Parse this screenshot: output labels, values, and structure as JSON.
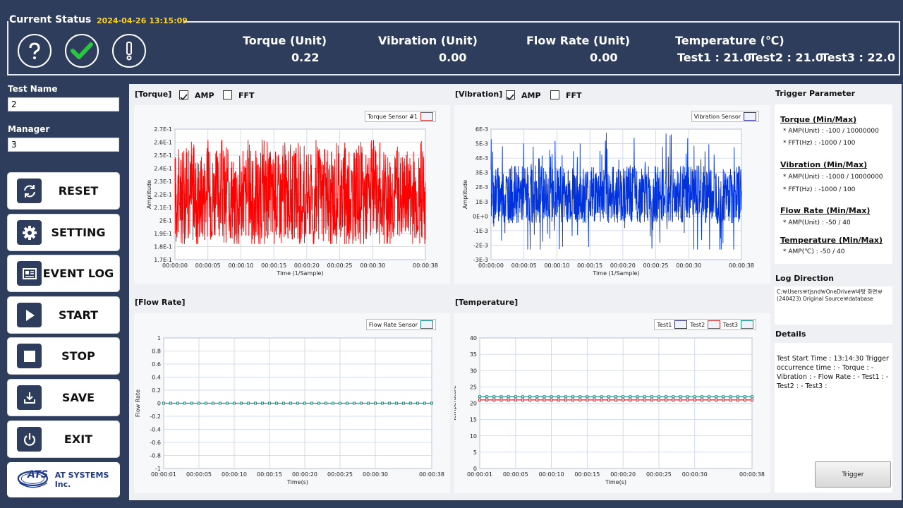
{
  "status": {
    "title": "Current Status",
    "datetime": "2024-04-26 13:15:09",
    "icons": [
      "help-icon",
      "check-icon",
      "alert-icon"
    ],
    "torque": {
      "label": "Torque (Unit)",
      "value": "0.22"
    },
    "vibration": {
      "label": "Vibration (Unit)",
      "value": "0.00"
    },
    "flow": {
      "label": "Flow Rate (Unit)",
      "value": "0.00"
    },
    "temperature": {
      "label": "Temperature (℃)",
      "test1": "Test1 : 21.0",
      "test2": "Test2 : 21.0",
      "test3": "Test3 : 22.0"
    }
  },
  "sidebar": {
    "test_name_label": "Test Name",
    "test_name_value": "2",
    "manager_label": "Manager",
    "manager_value": "3",
    "buttons": [
      {
        "label": "RESET",
        "icon": "refresh-icon"
      },
      {
        "label": "SETTING",
        "icon": "gear-icon"
      },
      {
        "label": "EVENT LOG",
        "icon": "log-icon"
      },
      {
        "label": "START",
        "icon": "play-icon"
      },
      {
        "label": "STOP",
        "icon": "stop-icon"
      },
      {
        "label": "SAVE",
        "icon": "download-icon"
      },
      {
        "label": "EXIT",
        "icon": "power-icon"
      }
    ],
    "logo_mark": "ATS",
    "logo_text": "AT SYSTEMS Inc."
  },
  "panels": {
    "torque": {
      "title": "[Torque]",
      "amp": "AMP",
      "fft": "FFT",
      "amp_checked": true,
      "fft_checked": false
    },
    "vibration": {
      "title": "[Vibration]",
      "amp": "AMP",
      "fft": "FFT",
      "amp_checked": true,
      "fft_checked": false
    },
    "flow": {
      "title": "[Flow Rate]"
    },
    "temperature": {
      "title": "[Temperature]"
    }
  },
  "colors": {
    "torque": "#ff0000",
    "vibration": "#0033dd",
    "flow": "#1f8f86",
    "bg_dark": "#2e3d5c"
  },
  "chart_data": [
    {
      "id": "torque",
      "type": "line",
      "legend": [
        "Torque Sensor #1"
      ],
      "ylabel": "Amplitude",
      "xlabel": "Time (1/Sample)",
      "yticks": [
        "2.7E-1",
        "2.6E-1",
        "2.5E-1",
        "2.4E-1",
        "2.3E-1",
        "2.2E-1",
        "2.1E-1",
        "2E-1",
        "1.9E-1",
        "1.8E-1",
        "1.7E-1"
      ],
      "xticks": [
        "00:00:00",
        "00:00:05",
        "00:00:10",
        "00:00:15",
        "00:00:20",
        "00:00:25",
        "00:00:30",
        "00:00:38"
      ],
      "ylim": [
        0.17,
        0.27
      ],
      "band": {
        "center": 0.22,
        "spread": 0.035,
        "max_spike": 0.262,
        "min_spike": 0.182
      }
    },
    {
      "id": "vibration",
      "type": "line",
      "legend": [
        "Vibration Sensor"
      ],
      "ylabel": "Amplitude",
      "xlabel": "Time (1/Sample)",
      "yticks": [
        "6E-3",
        "5E-3",
        "4E-3",
        "3E-3",
        "2E-3",
        "1E-3",
        "0E+0",
        "-1E-3",
        "-2E-3",
        "-3E-3"
      ],
      "xticks": [
        "00:00:00",
        "00:00:05",
        "00:00:10",
        "00:00:15",
        "00:00:20",
        "00:00:25",
        "00:00:30",
        "00:00:38"
      ],
      "ylim": [
        -0.003,
        0.006
      ],
      "band": {
        "center": 0.0015,
        "spread": 0.002,
        "max_spike": 0.0058,
        "min_spike": -0.0023
      }
    },
    {
      "id": "flow",
      "type": "line",
      "legend": [
        "Flow Rate Sensor"
      ],
      "ylabel": "Flow Rate",
      "xlabel": "Time(s)",
      "yticks": [
        "1",
        "0.8",
        "0.6",
        "0.4",
        "0.2",
        "0",
        "-0.2",
        "-0.4",
        "-0.6",
        "-0.8",
        "-1"
      ],
      "xticks": [
        "00:00:01",
        "00:00:05",
        "00:00:10",
        "00:00:15",
        "00:00:20",
        "00:00:25",
        "00:00:30",
        "00:00:38"
      ],
      "ylim": [
        -1,
        1
      ],
      "series": [
        {
          "name": "Flow Rate Sensor",
          "value": 0
        }
      ]
    },
    {
      "id": "temperature",
      "type": "line",
      "legend": [
        "Test1",
        "Test2",
        "Test3"
      ],
      "ylabel": "Temperature",
      "xlabel": "Time(s)",
      "yticks": [
        "40",
        "35",
        "30",
        "25",
        "20",
        "15",
        "10",
        "5",
        "0"
      ],
      "xticks": [
        "00:00:01",
        "00:00:05",
        "00:00:10",
        "00:00:15",
        "00:00:20",
        "00:00:25",
        "00:00:30",
        "00:00:38"
      ],
      "ylim": [
        0,
        40
      ],
      "series": [
        {
          "name": "Test1",
          "value": 21
        },
        {
          "name": "Test2",
          "value": 21
        },
        {
          "name": "Test3",
          "value": 22
        }
      ]
    }
  ],
  "trigger": {
    "title": "Trigger Parameter",
    "torque_head": "Torque (Min/Max)",
    "torque_amp": "* AMP(Unit) :  -100 / 10000000",
    "torque_fft": "* FFT(Hz)      :  -1000 / 100",
    "vib_head": "Vibration (Min/Max)",
    "vib_amp": "* AMP(Unit) :  -1000 / 10000000",
    "vib_fft": "* FFT(Hz)      :  -1000 / 100",
    "flow_head": "Flow Rate (Min/Max)",
    "flow_amp": "* AMP(Unit) :      -50 / 40",
    "temp_head": "Temperature (Min/Max)",
    "temp_amp": "* AMP(℃)     :      -50 / 40"
  },
  "log": {
    "title": "Log Direction",
    "line1": "C:￦Users￦tjsnd￦OneDrive￦바탕 화면￦",
    "line2": "(240423) Original Source￦database"
  },
  "details": {
    "title": "Details",
    "text": "Test Start Time : 13:14:30 Trigger occurrence time : - Torque : - Vibration : - Flow Rate : - Test1 : - Test2 : - Test3 :"
  },
  "trigger_button": "Trigger"
}
